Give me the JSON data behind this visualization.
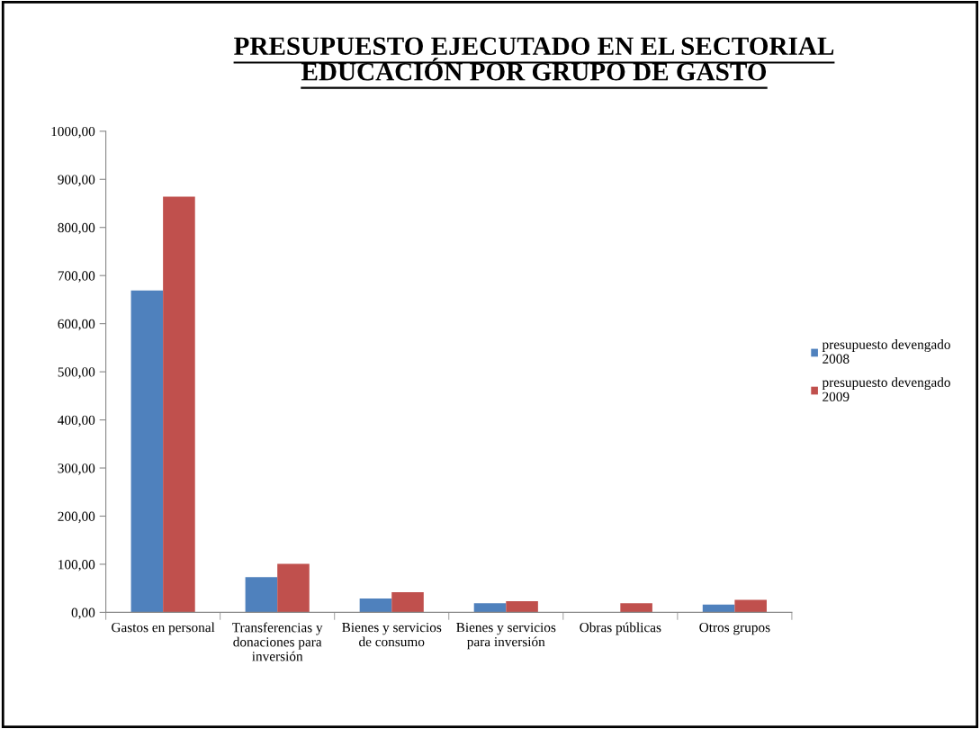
{
  "chart_data": {
    "type": "bar",
    "title": "PRESUPUESTO EJECUTADO EN EL SECTORIAL\nEDUCACIÓN POR GRUPO DE GASTO",
    "categories": [
      "Gastos en personal",
      "Transferencias y\ndonaciones para\ninversión",
      "Bienes y servicios\nde consumo",
      "Bienes y servicios\npara inversión",
      "Obras públicas",
      "Otros grupos"
    ],
    "series": [
      {
        "name": "presupuesto devengado\n2008",
        "color": "#4f81bd",
        "values": [
          669,
          73,
          29,
          19,
          null,
          16
        ]
      },
      {
        "name": "presupuesto devengado\n2009",
        "color": "#c0504d",
        "values": [
          864,
          101,
          42,
          23,
          19,
          26
        ]
      }
    ],
    "ylim": [
      0,
      1000
    ],
    "yticks": [
      {
        "value": 0,
        "label": "0,00"
      },
      {
        "value": 100,
        "label": "100,00"
      },
      {
        "value": 200,
        "label": "200,00"
      },
      {
        "value": 300,
        "label": "300,00"
      },
      {
        "value": 400,
        "label": "400,00"
      },
      {
        "value": 500,
        "label": "500,00"
      },
      {
        "value": 600,
        "label": "600,00"
      },
      {
        "value": 700,
        "label": "700,00"
      },
      {
        "value": 800,
        "label": "800,00"
      },
      {
        "value": 900,
        "label": "900,00"
      },
      {
        "value": 1000,
        "label": "1000,00"
      }
    ],
    "legend": "right",
    "grid": false
  }
}
